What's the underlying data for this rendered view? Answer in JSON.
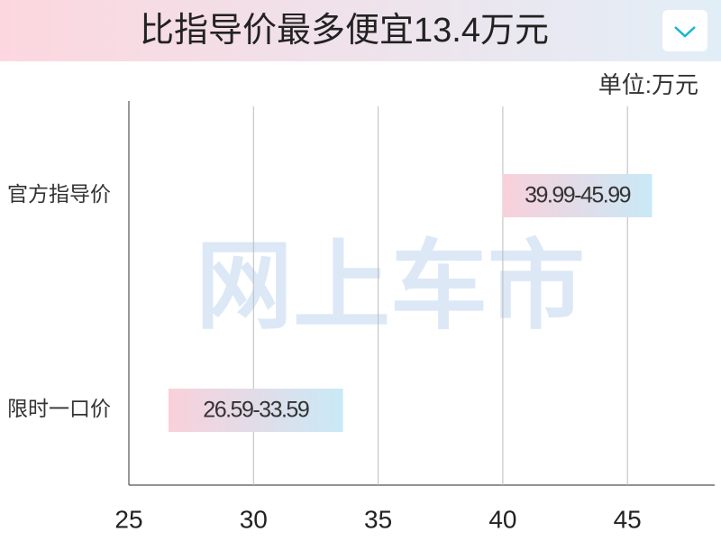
{
  "header": {
    "title": "比指导价最多便宜13.4万元"
  },
  "chart_data": {
    "type": "range-bar",
    "orientation": "horizontal",
    "unit_label": "单位:万元",
    "watermark": "网上车市",
    "categories": [
      "官方指导价",
      "限时一口价"
    ],
    "values": [
      [
        39.99,
        45.99
      ],
      [
        26.59,
        33.59
      ]
    ],
    "value_labels": [
      "39.99-45.99",
      "26.59-33.59"
    ],
    "colors": [
      "#f9d0da",
      "#c9e9f6"
    ],
    "xlim": [
      25,
      48.5
    ],
    "xticks": [
      25,
      30,
      35,
      40,
      45
    ],
    "grid": true
  }
}
